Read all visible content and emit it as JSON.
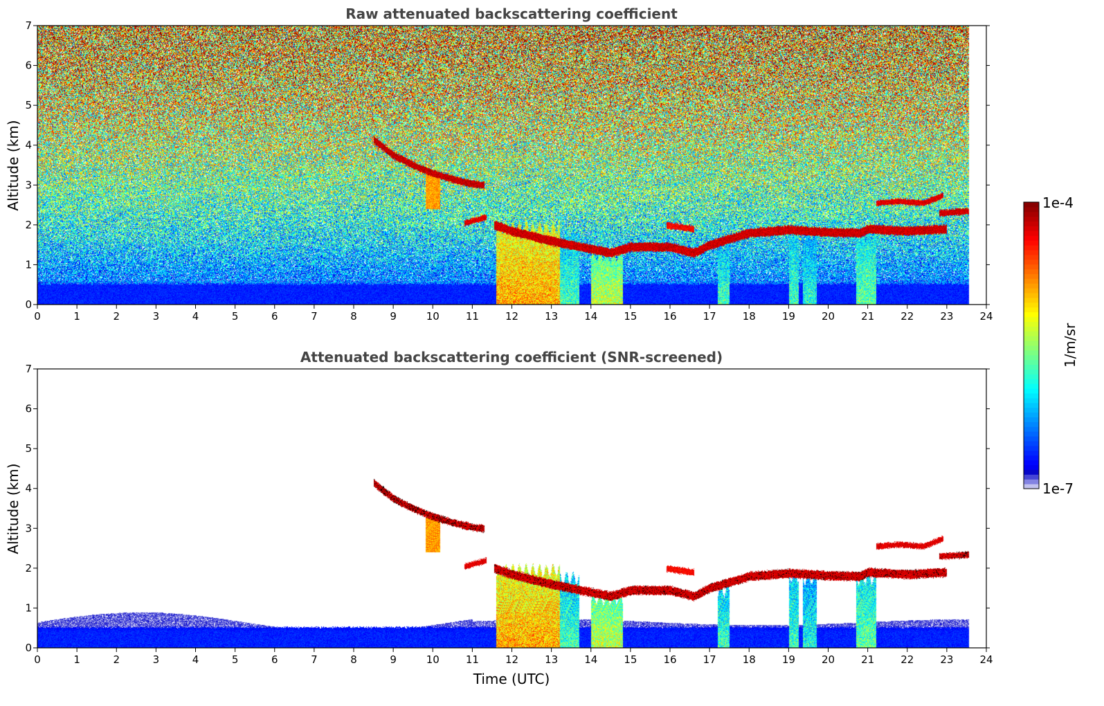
{
  "chart_data": [
    {
      "type": "heatmap",
      "title": "Raw attenuated backscattering coefficient",
      "xlabel": "",
      "ylabel": "Altitude (km)",
      "xlim": [
        0,
        24
      ],
      "ylim": [
        0,
        7
      ],
      "x_ticks": [
        0,
        1,
        2,
        3,
        4,
        5,
        6,
        7,
        8,
        9,
        10,
        11,
        12,
        13,
        14,
        15,
        16,
        17,
        18,
        19,
        20,
        21,
        22,
        23,
        24
      ],
      "y_ticks": [
        0,
        1,
        2,
        3,
        4,
        5,
        6,
        7
      ],
      "data_end_time": 23.55,
      "noise_field": {
        "low_altitude_level": 0.05,
        "high_altitude_level": 0.72,
        "noise_amplitude": 0.32
      },
      "boundary_layer": {
        "altitude_km": 0.5,
        "level": 0.08
      },
      "cloud_layers": [
        {
          "name": "descending-cloud-top",
          "points": [
            [
              8.5,
              4.15
            ],
            [
              9.0,
              3.75
            ],
            [
              9.5,
              3.5
            ],
            [
              10.0,
              3.3
            ],
            [
              10.5,
              3.15
            ],
            [
              11.0,
              3.03
            ],
            [
              11.3,
              3.0
            ]
          ],
          "thickness_km": 0.14,
          "level": 0.98
        },
        {
          "name": "fallstreak-10",
          "points": [
            [
              10.0,
              3.3
            ],
            [
              10.05,
              2.4
            ]
          ],
          "thickness_km": 0.18,
          "level": 0.78
        },
        {
          "name": "lower-patch-11",
          "points": [
            [
              10.8,
              2.05
            ],
            [
              11.35,
              2.2
            ]
          ],
          "thickness_km": 0.1,
          "level": 0.95
        },
        {
          "name": "main-layer",
          "points": [
            [
              11.55,
              2.0
            ],
            [
              12.0,
              1.85
            ],
            [
              13.0,
              1.6
            ],
            [
              14.0,
              1.4
            ],
            [
              14.5,
              1.3
            ],
            [
              15.0,
              1.45
            ],
            [
              16.0,
              1.45
            ],
            [
              16.6,
              1.3
            ],
            [
              17.0,
              1.5
            ],
            [
              17.5,
              1.65
            ],
            [
              18.0,
              1.8
            ],
            [
              19.0,
              1.88
            ],
            [
              20.0,
              1.82
            ],
            [
              20.8,
              1.8
            ],
            [
              21.0,
              1.9
            ],
            [
              22.0,
              1.85
            ],
            [
              23.0,
              1.9
            ]
          ],
          "thickness_km": 0.18,
          "level": 0.97
        },
        {
          "name": "patch-16",
          "points": [
            [
              15.9,
              2.0
            ],
            [
              16.6,
              1.9
            ]
          ],
          "thickness_km": 0.12,
          "level": 0.92
        },
        {
          "name": "upper-layer-21-23",
          "points": [
            [
              21.2,
              2.55
            ],
            [
              21.8,
              2.6
            ],
            [
              22.4,
              2.55
            ],
            [
              22.9,
              2.75
            ]
          ],
          "thickness_km": 0.1,
          "level": 0.95
        },
        {
          "name": "layer-23",
          "points": [
            [
              22.8,
              2.3
            ],
            [
              23.55,
              2.35
            ]
          ],
          "thickness_km": 0.12,
          "level": 0.97
        }
      ],
      "precipitation_shafts": [
        {
          "t_start": 11.6,
          "t_end": 13.2,
          "top_km": 2.0,
          "level": 0.7
        },
        {
          "t_start": 13.2,
          "t_end": 13.7,
          "top_km": 1.8,
          "level": 0.42
        },
        {
          "t_start": 14.0,
          "t_end": 14.8,
          "top_km": 1.3,
          "level": 0.55
        },
        {
          "t_start": 17.2,
          "t_end": 17.5,
          "top_km": 1.5,
          "level": 0.42
        },
        {
          "t_start": 19.0,
          "t_end": 19.25,
          "top_km": 1.85,
          "level": 0.42
        },
        {
          "t_start": 19.35,
          "t_end": 19.7,
          "top_km": 1.8,
          "level": 0.38
        },
        {
          "t_start": 20.7,
          "t_end": 21.2,
          "top_km": 1.8,
          "level": 0.45
        }
      ]
    },
    {
      "type": "heatmap",
      "title": "Attenuated backscattering coefficient (SNR-screened)",
      "xlabel": "Time (UTC)",
      "ylabel": "Altitude (km)",
      "xlim": [
        0,
        24
      ],
      "ylim": [
        0,
        7
      ],
      "x_ticks": [
        0,
        1,
        2,
        3,
        4,
        5,
        6,
        7,
        8,
        9,
        10,
        11,
        12,
        13,
        14,
        15,
        16,
        17,
        18,
        19,
        20,
        21,
        22,
        23,
        24
      ],
      "y_ticks": [
        0,
        1,
        2,
        3,
        4,
        5,
        6,
        7
      ],
      "snr_screened": true,
      "data_end_time": 23.55,
      "saturated_color": "#000000"
    }
  ],
  "colorbar": {
    "label": "1/m/sr",
    "max_label": "1e-4",
    "min_label": "1e-7",
    "colormap": "jet"
  }
}
